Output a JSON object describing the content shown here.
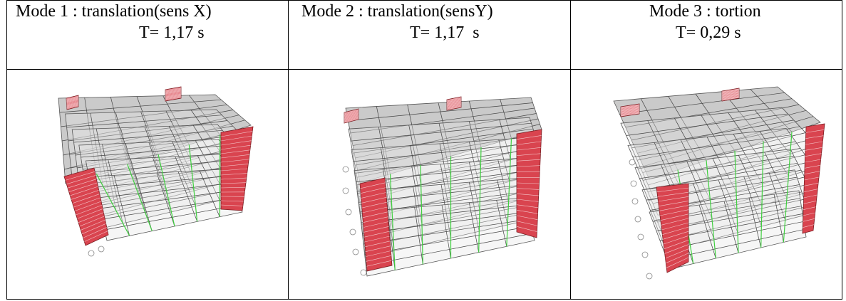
{
  "modes": [
    {
      "title": "Mode 1 : translation(sens X)",
      "period": "T= 1,17 s",
      "image": "building-deformed-mode-1"
    },
    {
      "title": "Mode 2 : translation(sensY)",
      "period": "T= 1,17  s",
      "image": "building-deformed-mode-2"
    },
    {
      "title": "Mode 3 : tortion",
      "period": "T= 0,29 s",
      "image": "building-deformed-mode-3"
    }
  ],
  "colors": {
    "shear_wall": "#d9444f",
    "slab": "#c4c4c4",
    "column": "#3fcf3f",
    "frame": "#555555"
  }
}
